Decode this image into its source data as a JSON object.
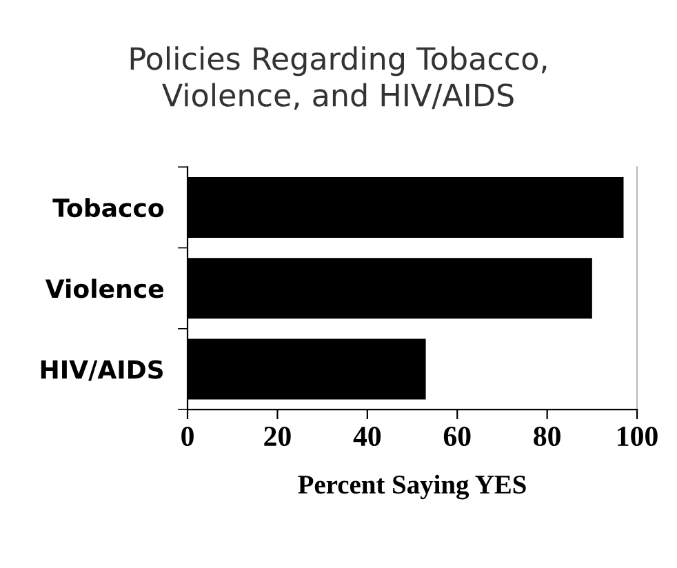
{
  "chart_data": {
    "type": "bar",
    "orientation": "horizontal",
    "title": "Policies Regarding Tobacco,\nViolence, and HIV/AIDS",
    "xlabel": "Percent Saying YES",
    "categories": [
      "Tobacco",
      "Violence",
      "HIV/AIDS"
    ],
    "values": [
      97,
      90,
      53
    ],
    "color": "#000000",
    "xlim": [
      0,
      100
    ],
    "xticks": [
      0,
      20,
      40,
      60,
      80,
      100
    ],
    "grid": false
  }
}
